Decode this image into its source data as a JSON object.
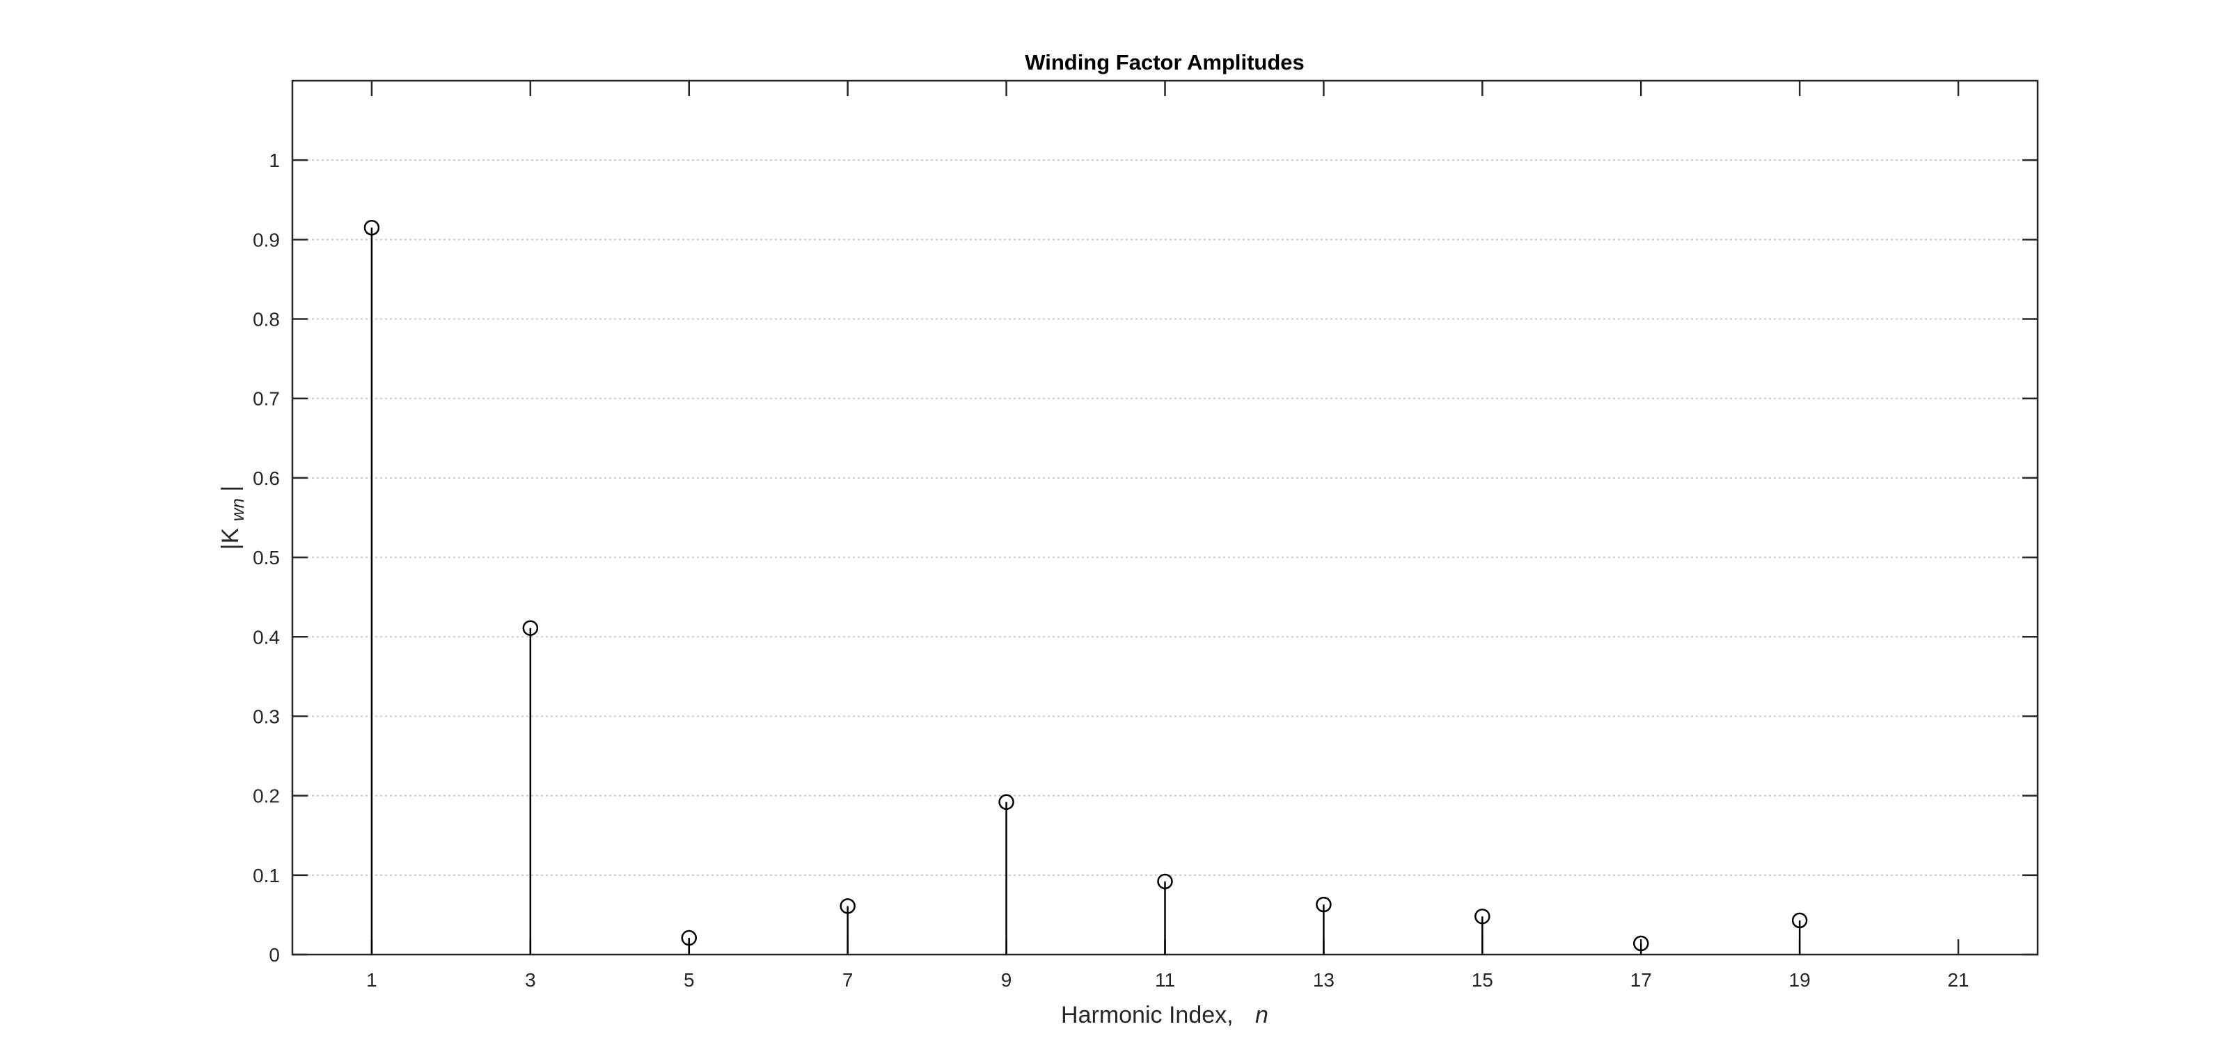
{
  "chart_data": {
    "type": "stem",
    "title": "Winding Factor Amplitudes",
    "xlabel": "Harmonic Index,",
    "xlabel_var": "n",
    "ylabel_pre": "|K",
    "ylabel_sub": "wn",
    "ylabel_post": "|",
    "xlim": [
      0,
      22
    ],
    "ylim": [
      0,
      1.1
    ],
    "xticks": [
      "1",
      "3",
      "5",
      "7",
      "9",
      "11",
      "13",
      "15",
      "17",
      "19",
      "21"
    ],
    "yticks": [
      "0",
      "0.1",
      "0.2",
      "0.3",
      "0.4",
      "0.5",
      "0.6",
      "0.7",
      "0.8",
      "0.9",
      "1"
    ],
    "grid": "y-only",
    "x": [
      1,
      3,
      5,
      7,
      9,
      11,
      13,
      15,
      17,
      19
    ],
    "y": [
      0.915,
      0.411,
      0.021,
      0.061,
      0.192,
      0.092,
      0.063,
      0.048,
      0.014,
      0.043
    ]
  }
}
